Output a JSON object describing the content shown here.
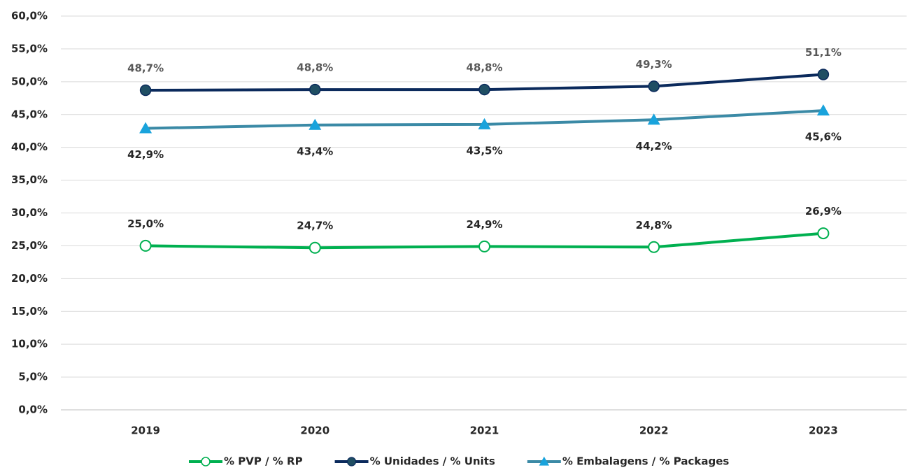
{
  "chart_data": {
    "type": "line",
    "categories": [
      "2019",
      "2020",
      "2021",
      "2022",
      "2023"
    ],
    "series": [
      {
        "name": "% PVP / % RP",
        "color": "#00b050",
        "marker": "circle-open",
        "marker_color": "#00b050",
        "label_position": "above",
        "values": [
          25.0,
          24.7,
          24.9,
          24.8,
          26.9
        ],
        "value_labels": [
          "25,0%",
          "24,7%",
          "24,9%",
          "24,8%",
          "26,9%"
        ]
      },
      {
        "name": "% Unidades / % Units",
        "color": "#0b2a5c",
        "marker": "circle",
        "marker_color": "#1f4e63",
        "label_position": "above",
        "values": [
          48.7,
          48.8,
          48.8,
          49.3,
          51.1
        ],
        "value_labels": [
          "48,7%",
          "48,8%",
          "48,8%",
          "49,3%",
          "51,1%"
        ]
      },
      {
        "name": "% Embalagens / % Packages",
        "color": "#3b8aa6",
        "marker": "triangle",
        "marker_color": "#19a3dc",
        "label_position": "below",
        "values": [
          42.9,
          43.4,
          43.5,
          44.2,
          45.6
        ],
        "value_labels": [
          "42,9%",
          "43,4%",
          "43,5%",
          "44,2%",
          "45,6%"
        ]
      }
    ],
    "ylim": [
      0,
      60
    ],
    "yticks": [
      {
        "value": 0,
        "label": "0,0%"
      },
      {
        "value": 5,
        "label": "5,0%"
      },
      {
        "value": 10,
        "label": "10,0%"
      },
      {
        "value": 15,
        "label": "15,0%"
      },
      {
        "value": 20,
        "label": "20,0%"
      },
      {
        "value": 25,
        "label": "25,0%"
      },
      {
        "value": 30,
        "label": "30,0%"
      },
      {
        "value": 35,
        "label": "35,0%"
      },
      {
        "value": 40,
        "label": "40,0%"
      },
      {
        "value": 45,
        "label": "45,0%"
      },
      {
        "value": 50,
        "label": "50,0%"
      },
      {
        "value": 55,
        "label": "55,0%"
      },
      {
        "value": 60,
        "label": "60,0%"
      }
    ],
    "grid": true,
    "legend": "bottom"
  }
}
